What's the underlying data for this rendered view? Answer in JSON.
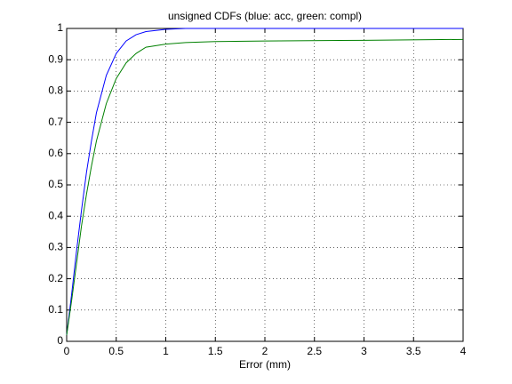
{
  "chart_data": {
    "type": "line",
    "title": "unsigned CDFs (blue: acc, green: compl)",
    "xlabel": "Error (mm)",
    "x": [
      0,
      0.05,
      0.1,
      0.15,
      0.2,
      0.25,
      0.3,
      0.4,
      0.5,
      0.6,
      0.7,
      0.8,
      1,
      1.2,
      1.5,
      2,
      3,
      4
    ],
    "series": [
      {
        "color": "#0000ff",
        "values": [
          0.02,
          0.15,
          0.29,
          0.42,
          0.54,
          0.64,
          0.73,
          0.85,
          0.92,
          0.96,
          0.98,
          0.99,
          0.997,
          1,
          1,
          1,
          1,
          1
        ]
      },
      {
        "color": "#008000",
        "values": [
          0.02,
          0.13,
          0.25,
          0.37,
          0.47,
          0.56,
          0.64,
          0.76,
          0.84,
          0.89,
          0.92,
          0.94,
          0.95,
          0.955,
          0.958,
          0.96,
          0.962,
          0.965
        ]
      }
    ],
    "xlim": [
      0,
      4
    ],
    "xticks": [
      0,
      0.5,
      1,
      1.5,
      2,
      2.5,
      3,
      3.5,
      4
    ],
    "ylim": [
      0,
      1
    ],
    "yticks": [
      0,
      0.1,
      0.2,
      0.3,
      0.4,
      0.5,
      0.6,
      0.7,
      0.8,
      0.9,
      1
    ],
    "grid": true
  }
}
